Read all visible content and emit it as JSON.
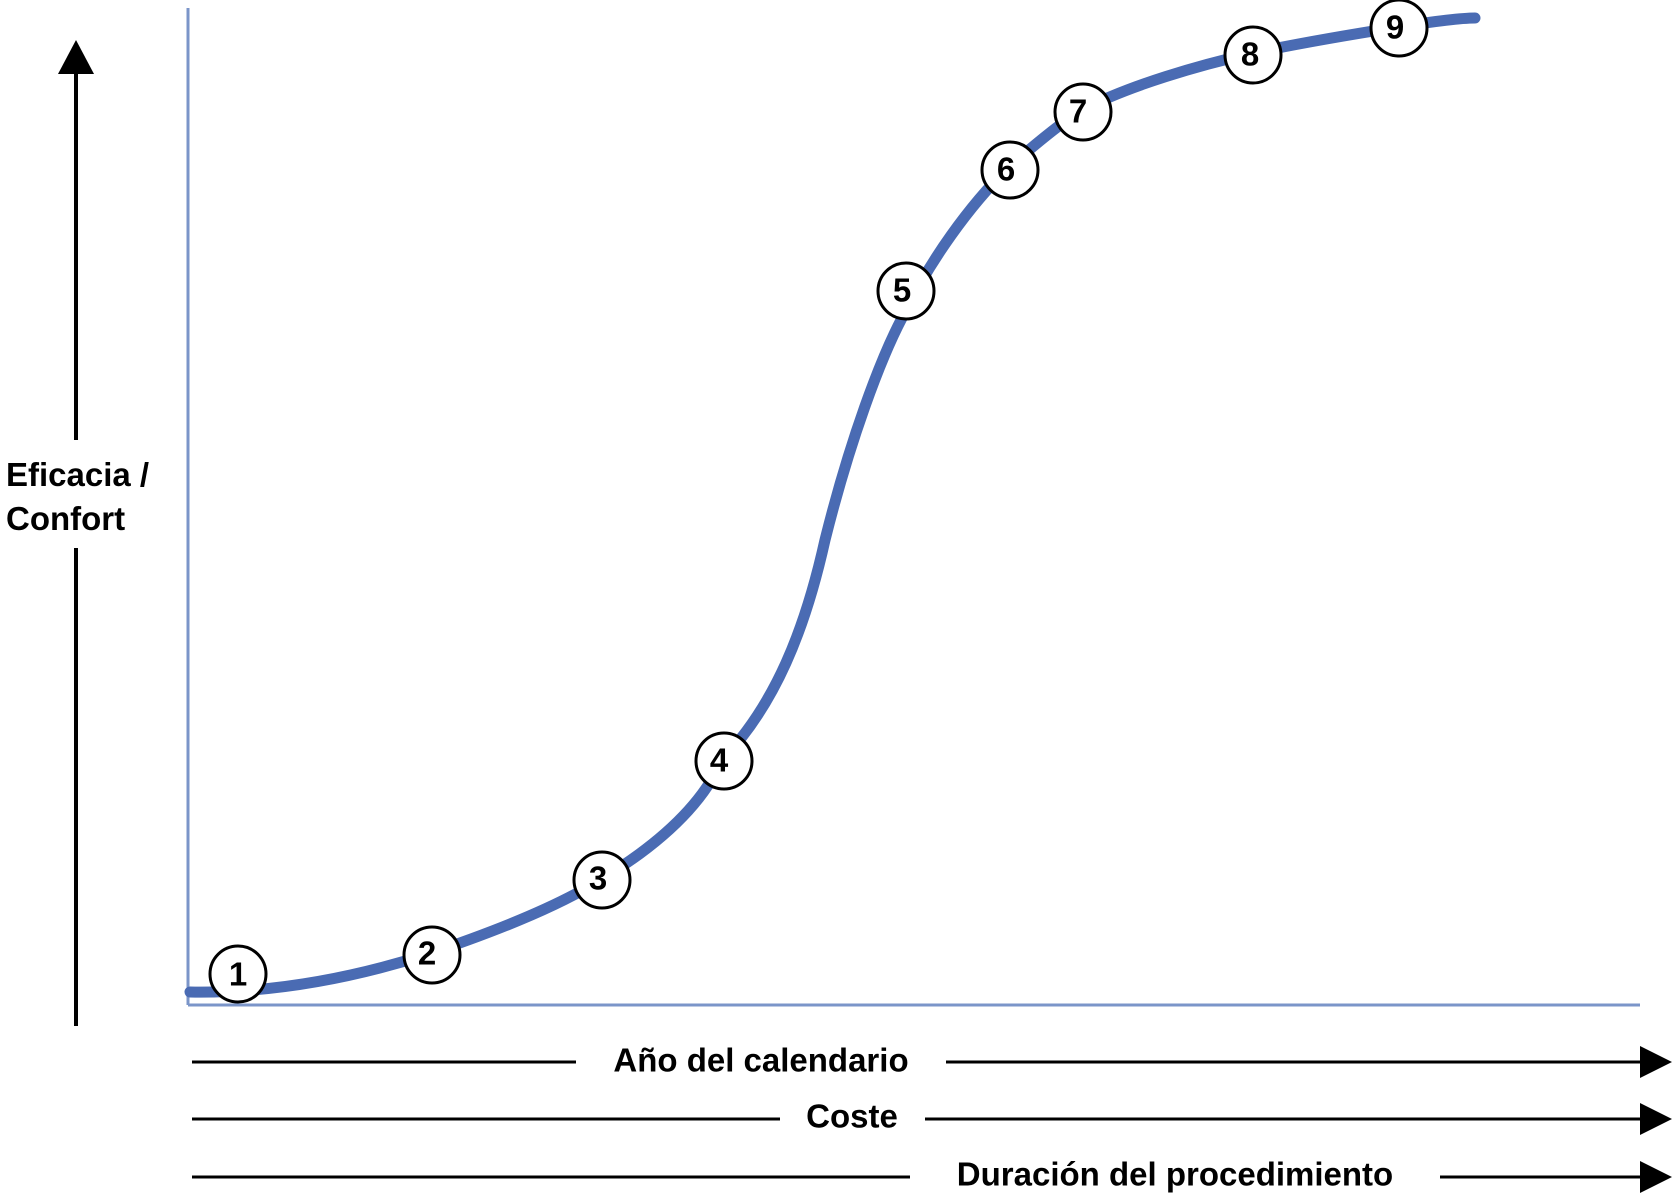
{
  "y_axis": {
    "label_line1": "Eficacia /",
    "label_line2": "Confort"
  },
  "x_arrows": [
    {
      "label": "Año del calendario"
    },
    {
      "label": "Coste"
    },
    {
      "label": "Duración del procedimiento"
    }
  ],
  "markers": [
    "1",
    "2",
    "3",
    "4",
    "5",
    "6",
    "7",
    "8",
    "9"
  ],
  "colors": {
    "curve": "#4A6BB3",
    "frame": "#7B95C9",
    "ink": "#000000"
  }
}
